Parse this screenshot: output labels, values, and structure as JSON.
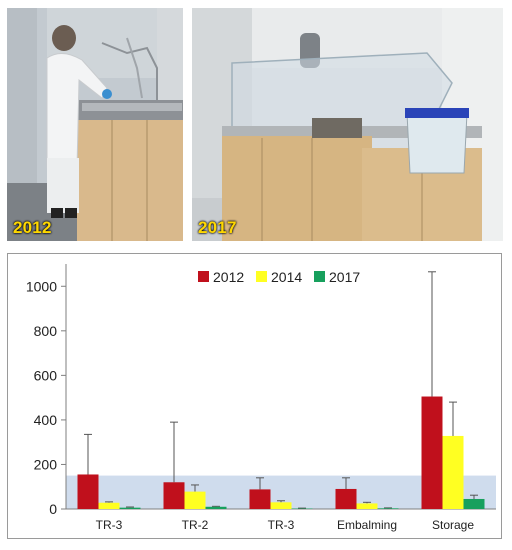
{
  "photos": [
    {
      "year_label": "2012"
    },
    {
      "year_label": "2017"
    }
  ],
  "colors": {
    "reference_band": "#cfdced",
    "axis": "#7f7f7f",
    "tick_text": "#222222",
    "error_bar": "#555555"
  },
  "chart_data": {
    "type": "bar",
    "categories": [
      "TR-3",
      "TR-2",
      "TR-3",
      "Embalming",
      "Storage"
    ],
    "series": [
      {
        "name": "2012",
        "color": "#c0101c",
        "values": [
          155,
          120,
          88,
          90,
          505
        ],
        "error_upper": [
          335,
          390,
          140,
          140,
          1065
        ]
      },
      {
        "name": "2014",
        "color": "#ffff22",
        "values": [
          28,
          78,
          30,
          25,
          328
        ],
        "error_upper": [
          32,
          108,
          37,
          30,
          480
        ]
      },
      {
        "name": "2017",
        "color": "#17a05d",
        "values": [
          6,
          10,
          2,
          3,
          45
        ],
        "error_upper": [
          9,
          12,
          4,
          5,
          62
        ]
      }
    ],
    "ylim": [
      0,
      1100
    ],
    "yticks": [
      0,
      200,
      400,
      600,
      800,
      1000
    ],
    "reference_band": [
      0,
      150
    ],
    "legend_position": "top-center",
    "grid": false
  }
}
